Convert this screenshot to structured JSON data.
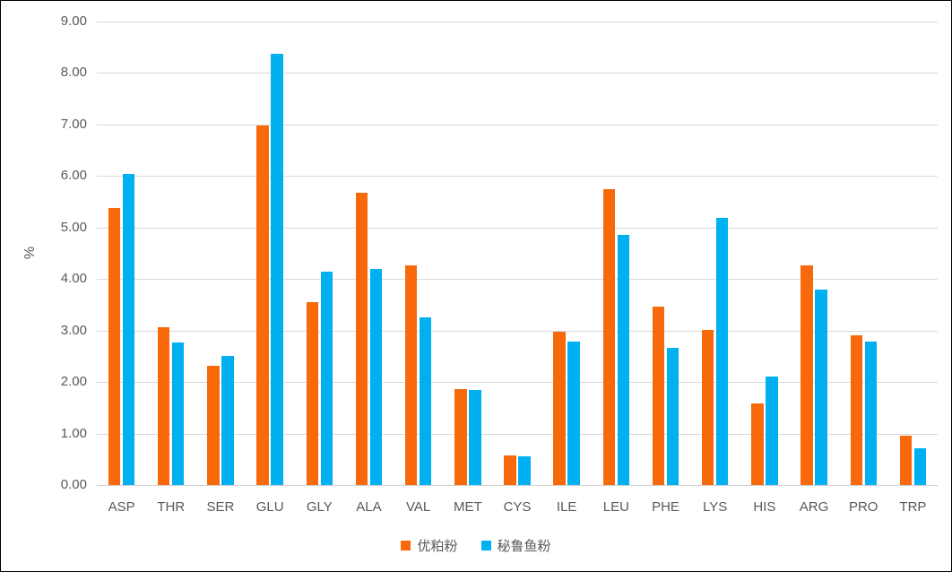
{
  "chart_data": {
    "type": "bar",
    "title": "",
    "xlabel": "",
    "ylabel": "%",
    "ylim": [
      0,
      9
    ],
    "ytick_step": 1.0,
    "ytick_decimals": 2,
    "grid": true,
    "legend_position": "bottom",
    "categories": [
      "ASP",
      "THR",
      "SER",
      "GLU",
      "GLY",
      "ALA",
      "VAL",
      "MET",
      "CYS",
      "ILE",
      "LEU",
      "PHE",
      "LYS",
      "HIS",
      "ARG",
      "PRO",
      "TRP"
    ],
    "series": [
      {
        "name": "优粕粉",
        "color": "#F8690B",
        "values": [
          5.38,
          3.06,
          2.31,
          6.98,
          3.55,
          5.68,
          4.26,
          1.86,
          0.57,
          2.98,
          5.75,
          3.47,
          3.02,
          1.58,
          4.26,
          2.91,
          0.96
        ]
      },
      {
        "name": "秘鲁鱼粉",
        "color": "#00B0F0",
        "values": [
          6.04,
          2.76,
          2.51,
          8.37,
          4.14,
          4.19,
          3.26,
          1.84,
          0.56,
          2.79,
          4.86,
          2.66,
          5.18,
          2.1,
          3.79,
          2.79,
          0.72
        ]
      }
    ]
  },
  "colors": {
    "background": "#FFFFFF",
    "frame_border": "#000000",
    "gridline": "#D9D9D9",
    "axis_text": "#595959"
  }
}
